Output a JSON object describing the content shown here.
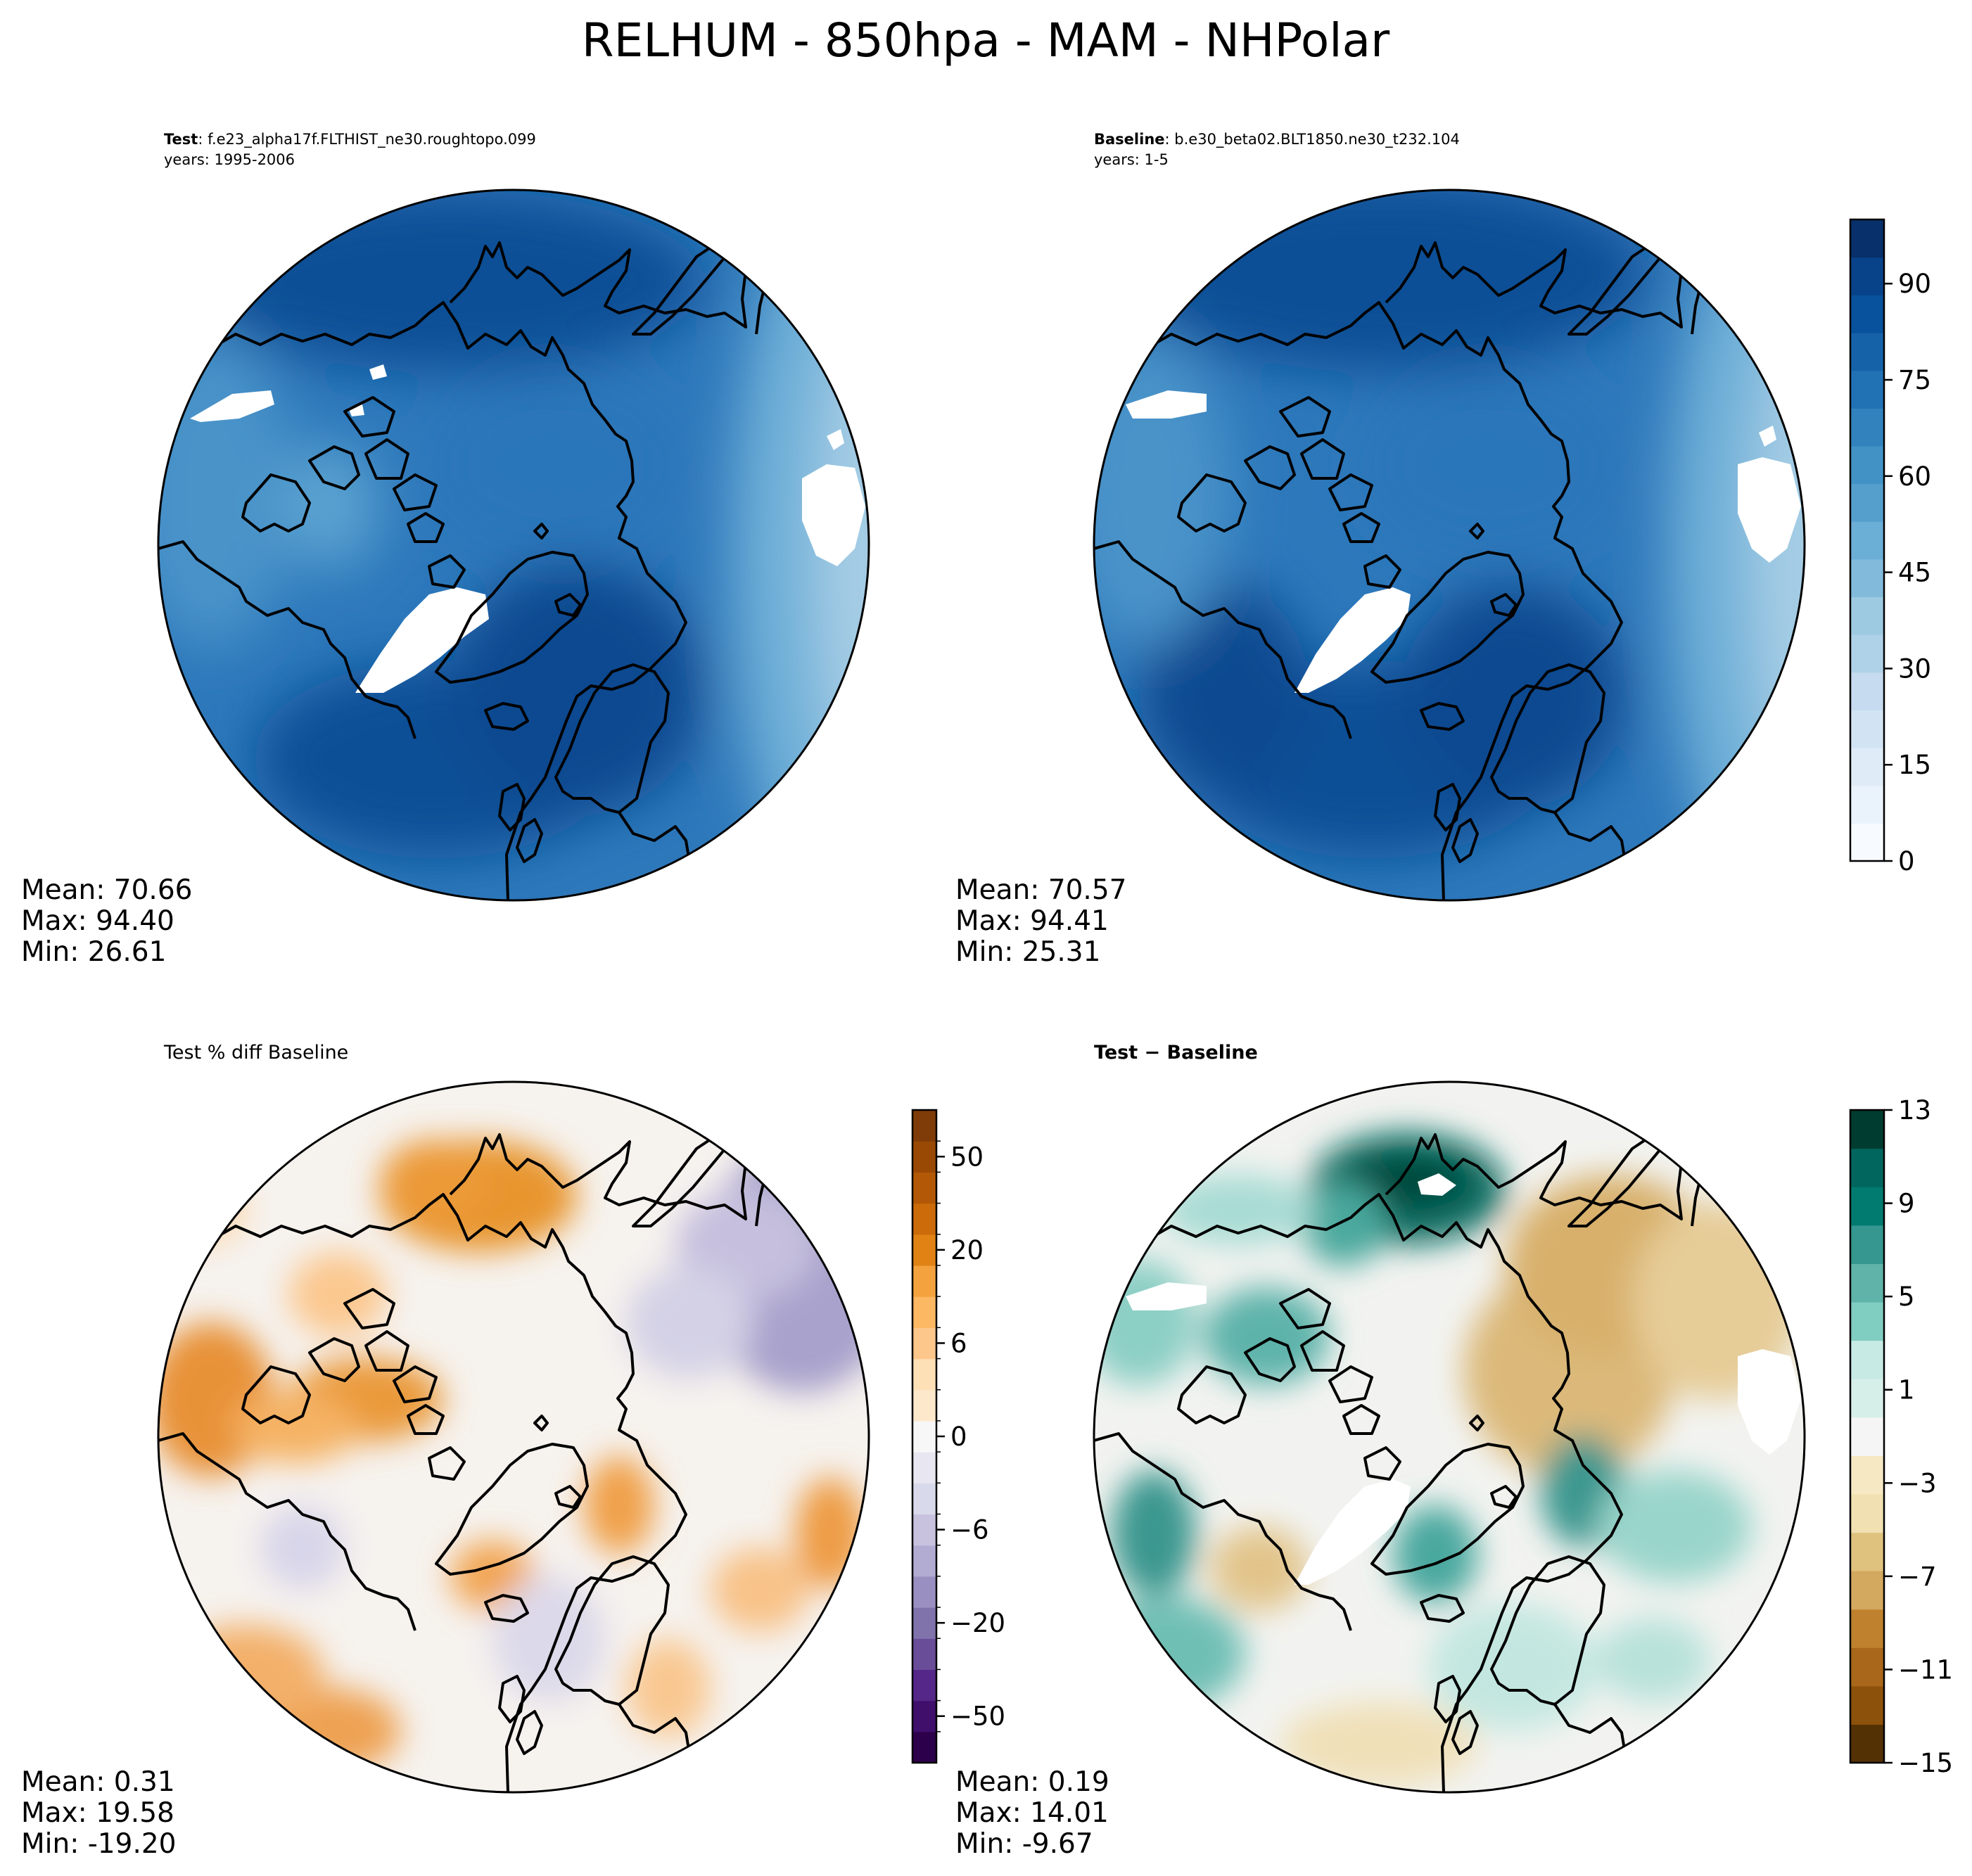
{
  "title": "RELHUM - 850hpa - MAM - NHPolar",
  "panels": [
    {
      "id": "test",
      "label_bold": "Test",
      "label_sep": ": ",
      "label_rest": "f.e23_alpha17f.FLTHIST_ne30.roughtopo.099",
      "subtitle": "years: 1995-2006",
      "stats": {
        "mean": "Mean: 70.66",
        "max": "Max: 94.40",
        "min": "Min: 26.61"
      },
      "colormap": "Blues",
      "field_base": 76
    },
    {
      "id": "baseline",
      "label_bold": "Baseline",
      "label_sep": ": ",
      "label_rest": "b.e30_beta02.BLT1850.ne30_t232.104",
      "subtitle": "years: 1-5",
      "stats": {
        "mean": "Mean: 70.57",
        "max": "Max: 94.41",
        "min": "Min: 25.31"
      },
      "colormap": "Blues",
      "field_base": 75
    },
    {
      "id": "pctdiff",
      "label_plain": "Test % diff Baseline",
      "stats": {
        "mean": "Mean:  0.31",
        "max": "Max: 19.58",
        "min": "Min: -19.20"
      },
      "colormap": "PuOr_r"
    },
    {
      "id": "diff",
      "label_bold": "Test − Baseline",
      "stats": {
        "mean": "Mean:  0.19",
        "max": "Max: 14.01",
        "min": "Min: -9.67"
      },
      "colormap": "BrBG"
    }
  ],
  "colorbars": [
    {
      "id": "cbar-top",
      "colors": [
        "#f7fbff",
        "#eaf3fb",
        "#dfecf7",
        "#d2e4f3",
        "#c6dbef",
        "#b0d2e8",
        "#9ecae1",
        "#82badb",
        "#6baed6",
        "#559fcd",
        "#4292c6",
        "#3282be",
        "#2171b5",
        "#1562a9",
        "#08519c",
        "#08438a",
        "#08306b"
      ],
      "ticks": [
        "0",
        "15",
        "30",
        "45",
        "60",
        "75",
        "90"
      ],
      "tick_values": [
        0,
        15,
        30,
        45,
        60,
        75,
        90
      ],
      "vmin": 0,
      "vmax": 100
    },
    {
      "id": "cbar-pct",
      "colors": [
        "#2d004b",
        "#3f0f6b",
        "#542788",
        "#6a4d98",
        "#8073ac",
        "#9a8fc1",
        "#b2abd2",
        "#c8c2df",
        "#d8daeb",
        "#e8e7f1",
        "#f7f7f7",
        "#fde8cb",
        "#fee0b6",
        "#fdc68a",
        "#fdb863",
        "#f3a23d",
        "#e08214",
        "#cc6b0a",
        "#b35806",
        "#9a4905",
        "#7f3b08"
      ],
      "ticks": [
        "−50",
        "−20",
        "−6",
        "0",
        "6",
        "20",
        "50"
      ],
      "tick_positions": [
        1.5,
        4.5,
        7.5,
        10.5,
        13.5,
        16.5,
        19.5
      ]
    },
    {
      "id": "cbar-diff",
      "colors": [
        "#543005",
        "#8c510a",
        "#a8671a",
        "#bf812d",
        "#d3a85f",
        "#dfc27d",
        "#f0e0b2",
        "#f6e8c3",
        "#f5f5f5",
        "#d7efe9",
        "#c7eae5",
        "#80cdc1",
        "#5fb3a9",
        "#35978f",
        "#017b6f",
        "#01665e",
        "#003c30"
      ],
      "ticks": [
        "−15",
        "−11",
        "−7",
        "−3",
        "1",
        "5",
        "9",
        "13"
      ],
      "tick_values": [
        -15,
        -11,
        -7,
        -3,
        1,
        5,
        9,
        13
      ],
      "vmin": -15,
      "vmax": 13
    }
  ]
}
